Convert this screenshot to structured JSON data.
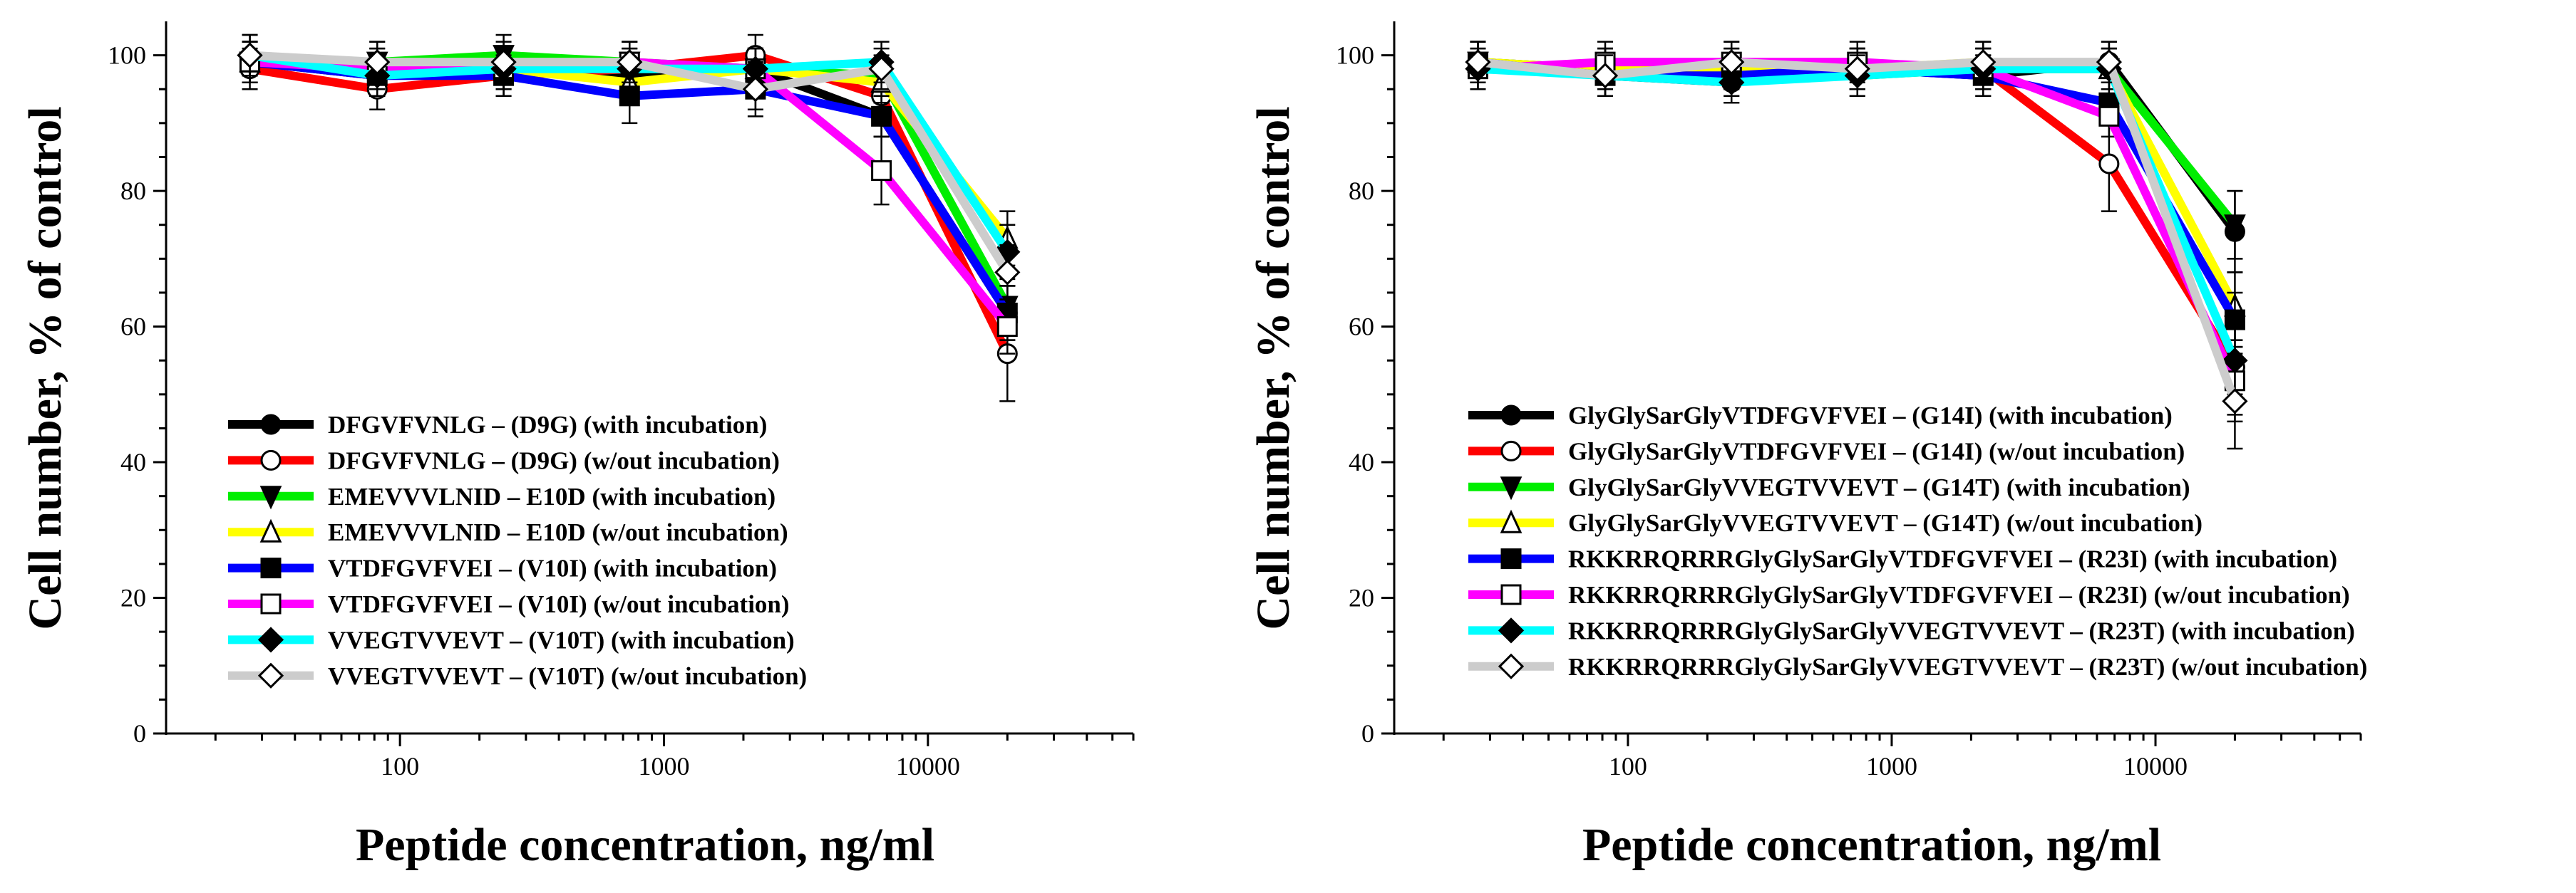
{
  "chart_data": [
    {
      "type": "line",
      "xscale": "log",
      "xlabel": "Peptide concentration, ng/ml",
      "ylabel": "Cell number, % of control",
      "xlim": [
        13,
        60000
      ],
      "ylim": [
        0,
        105
      ],
      "xticks": [
        100,
        1000,
        10000
      ],
      "xtick_labels": [
        "100",
        "1000",
        "10000"
      ],
      "yticks": [
        0,
        20,
        40,
        60,
        80,
        100
      ],
      "ytick_labels": [
        "0",
        "20",
        "40",
        "60",
        "80",
        "100"
      ],
      "x": [
        27,
        82,
        247,
        741,
        2222,
        6667,
        20000
      ],
      "legend_position": "bottom-left",
      "series": [
        {
          "name": "DFGVFVNLG – (D9G) (with incubation)",
          "color": "#000000",
          "marker": "circle-filled",
          "values": [
            99,
            97,
            98,
            97,
            98,
            91,
            62
          ],
          "errors": [
            3,
            3,
            3,
            3,
            3,
            3,
            4
          ]
        },
        {
          "name": "DFGVFVNLG – (D9G) (w/out incubation)",
          "color": "#ff0000",
          "marker": "circle-open",
          "values": [
            98,
            95,
            97,
            98,
            100,
            94,
            56
          ],
          "errors": [
            3,
            3,
            3,
            3,
            3,
            3,
            7
          ]
        },
        {
          "name": "EMEVVVLNID – E10D (with incubation)",
          "color": "#00ee00",
          "marker": "triangle-down-filled",
          "values": [
            99,
            99,
            100,
            99,
            98,
            97,
            63
          ],
          "errors": [
            3,
            3,
            3,
            3,
            3,
            3,
            3
          ]
        },
        {
          "name": "EMEVVVLNID – E10D (w/out incubation)",
          "color": "#ffff00",
          "marker": "triangle-up-open",
          "values": [
            99,
            98,
            98,
            96,
            98,
            96,
            73
          ],
          "errors": [
            3,
            3,
            3,
            3,
            3,
            3,
            4
          ]
        },
        {
          "name": "VTDFGVFVEI – (V10I) (with incubation)",
          "color": "#0000ff",
          "marker": "square-filled",
          "values": [
            99,
            97,
            97,
            94,
            95,
            91,
            62
          ],
          "errors": [
            3,
            3,
            3,
            4,
            3,
            3,
            4
          ]
        },
        {
          "name": "VTDFGVFVEI – (V10I) (w/out incubation)",
          "color": "#ff00ff",
          "marker": "square-open",
          "values": [
            99,
            98,
            98,
            99,
            98,
            83,
            60
          ],
          "errors": [
            3,
            3,
            3,
            3,
            3,
            5,
            4
          ]
        },
        {
          "name": "VVEGTVVEVT – (V10T) (with incubation)",
          "color": "#00ffff",
          "marker": "diamond-filled",
          "values": [
            100,
            97,
            98,
            98,
            98,
            99,
            71
          ],
          "errors": [
            3,
            3,
            3,
            3,
            3,
            3,
            4
          ]
        },
        {
          "name": "VVEGTVVEVT – (V10T) (w/out incubation)",
          "color": "#cccccc",
          "marker": "diamond-open",
          "values": [
            100,
            99,
            99,
            99,
            95,
            98,
            68
          ],
          "errors": [
            3,
            3,
            3,
            3,
            4,
            3,
            4
          ]
        }
      ]
    },
    {
      "type": "line",
      "xscale": "log",
      "xlabel": "Peptide concentration, ng/ml",
      "ylabel": "Cell number, % of control",
      "xlim": [
        13,
        60000
      ],
      "ylim": [
        0,
        105
      ],
      "xticks": [
        100,
        1000,
        10000
      ],
      "xtick_labels": [
        "100",
        "1000",
        "10000"
      ],
      "yticks": [
        0,
        20,
        40,
        60,
        80,
        100
      ],
      "ytick_labels": [
        "0",
        "20",
        "40",
        "60",
        "80",
        "100"
      ],
      "x": [
        27,
        82,
        247,
        741,
        2222,
        6667,
        20000
      ],
      "legend_position": "bottom-left",
      "series": [
        {
          "name": "GlyGlySarGlyVTDFGVFVEI – (G14I) (with incubation)",
          "color": "#000000",
          "marker": "circle-filled",
          "values": [
            99,
            97,
            96,
            98,
            97,
            99,
            74
          ],
          "errors": [
            3,
            3,
            3,
            3,
            3,
            3,
            6
          ]
        },
        {
          "name": "GlyGlySarGlyVTDFGVFVEI – (G14I) (w/out incubation)",
          "color": "#ff0000",
          "marker": "circle-open",
          "values": [
            99,
            98,
            97,
            98,
            98,
            84,
            54
          ],
          "errors": [
            3,
            3,
            3,
            3,
            3,
            7,
            8
          ]
        },
        {
          "name": "GlyGlySarGlyVVEGTVVEVT – (G14T) (with incubation)",
          "color": "#00ee00",
          "marker": "triangle-down-filled",
          "values": [
            99,
            98,
            98,
            97,
            98,
            98,
            75
          ],
          "errors": [
            3,
            3,
            3,
            3,
            3,
            3,
            5
          ]
        },
        {
          "name": "GlyGlySarGlyVVEGTVVEVT – (G14T) (w/out incubation)",
          "color": "#ffff00",
          "marker": "triangle-up-open",
          "values": [
            99,
            98,
            98,
            98,
            99,
            98,
            63
          ],
          "errors": [
            3,
            3,
            3,
            3,
            3,
            3,
            5
          ]
        },
        {
          "name": "RKKRRQRRRGlyGlySarGlyVTDFGVFVEI – (R23I) (with incubation)",
          "color": "#0000ff",
          "marker": "square-filled",
          "values": [
            99,
            97,
            97,
            98,
            97,
            93,
            61
          ],
          "errors": [
            3,
            3,
            3,
            3,
            3,
            3,
            4
          ]
        },
        {
          "name": "RKKRRQRRRGlyGlySarGlyVTDFGVFVEI – (R23I) (w/out incubation)",
          "color": "#ff00ff",
          "marker": "square-open",
          "values": [
            98,
            99,
            99,
            99,
            98,
            91,
            52
          ],
          "errors": [
            3,
            3,
            3,
            3,
            3,
            3,
            5
          ]
        },
        {
          "name": "RKKRRQRRRGlyGlySarGlyVVEGTVVEVT – (R23T) (with incubation)",
          "color": "#00ffff",
          "marker": "diamond-filled",
          "values": [
            98,
            97,
            96,
            97,
            98,
            98,
            55
          ],
          "errors": [
            3,
            3,
            3,
            3,
            3,
            3,
            5
          ]
        },
        {
          "name": "RKKRRQRRRGlyGlySarGlyVVEGTVVEVT – (R23T) (w/out incubation)",
          "color": "#cccccc",
          "marker": "diamond-open",
          "values": [
            99,
            97,
            99,
            98,
            99,
            99,
            49
          ],
          "errors": [
            3,
            3,
            3,
            3,
            3,
            3,
            7
          ]
        }
      ]
    }
  ]
}
